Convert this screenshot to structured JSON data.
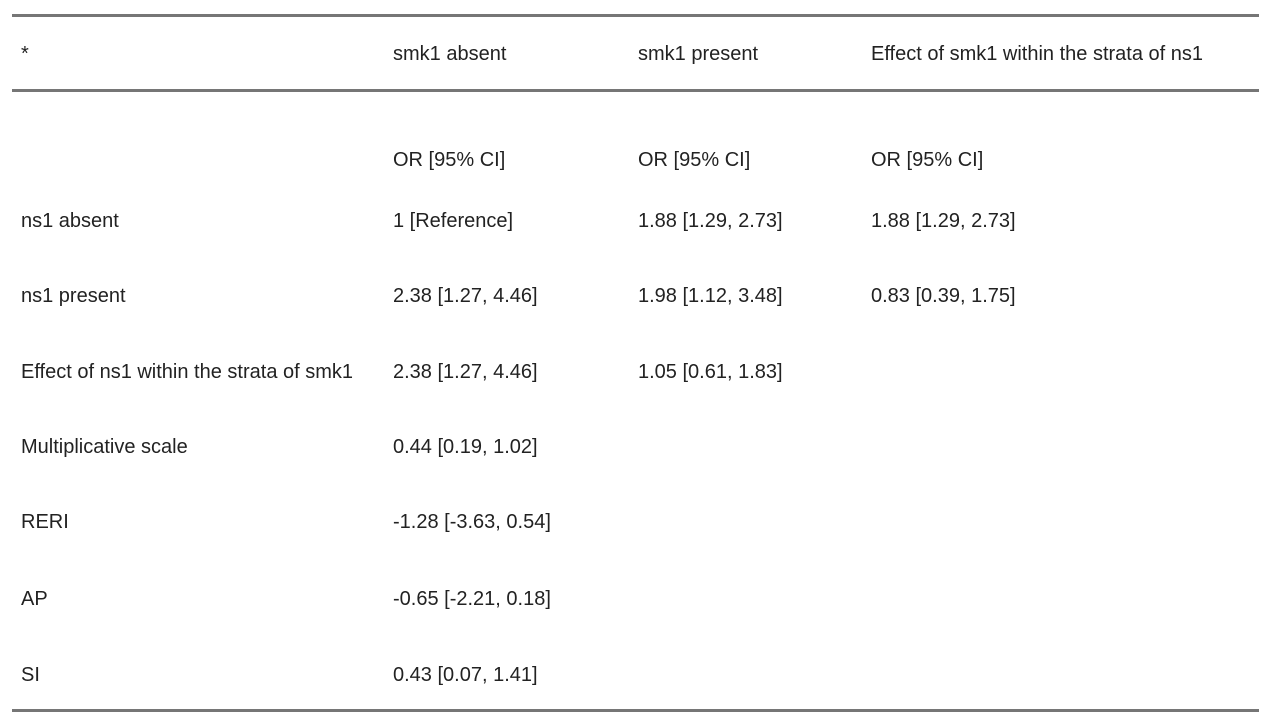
{
  "table": {
    "header": [
      "*",
      "smk1 absent",
      "smk1 present",
      "Effect of smk1 within the strata of ns1"
    ],
    "subheader": [
      "OR [95% CI]",
      "OR [95% CI]",
      "OR [95% CI]"
    ],
    "rows": [
      [
        "ns1 absent",
        "1 [Reference]",
        "1.88 [1.29, 2.73]",
        "1.88 [1.29, 2.73]"
      ],
      [
        "ns1 present",
        "2.38 [1.27, 4.46]",
        "1.98 [1.12, 3.48]",
        "0.83 [0.39, 1.75]"
      ],
      [
        "Effect of ns1 within the strata of smk1",
        "2.38 [1.27, 4.46]",
        "1.05 [0.61, 1.83]"
      ],
      [
        "Multiplicative scale",
        "0.44 [0.19, 1.02]"
      ],
      [
        "RERI",
        "-1.28 [-3.63, 0.54]"
      ],
      [
        "AP",
        "-0.65 [-2.21, 0.18]"
      ],
      [
        "SI",
        "0.43 [0.07, 1.41]"
      ]
    ]
  }
}
